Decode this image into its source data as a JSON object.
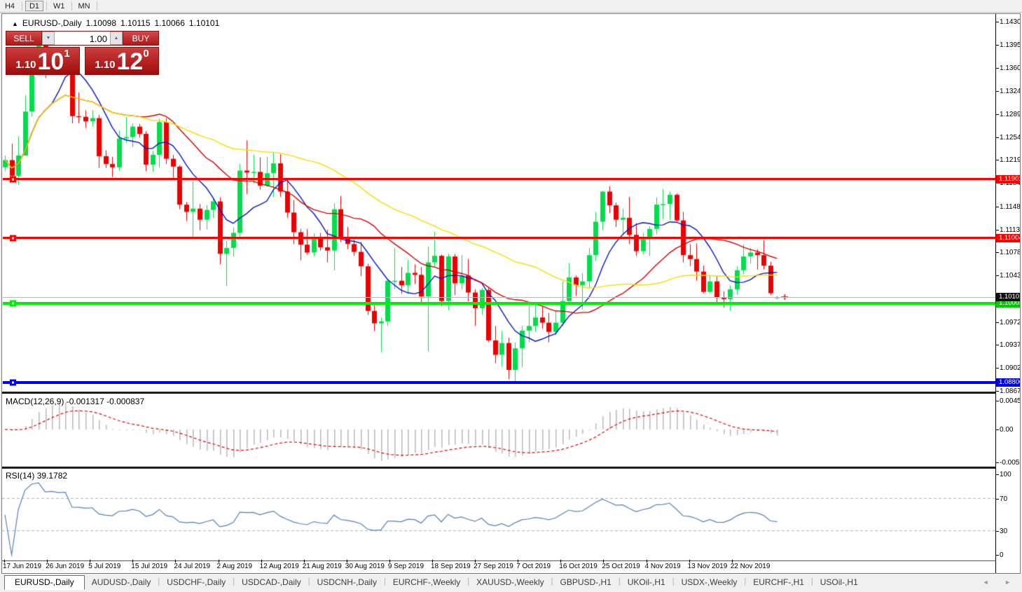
{
  "toolbar": {
    "periods": [
      {
        "label": "H4",
        "active": false
      },
      {
        "label": "D1",
        "active": true
      },
      {
        "label": "W1",
        "active": false
      },
      {
        "label": "MN",
        "active": false
      }
    ]
  },
  "chart_header": {
    "symbol_title": "EURUSD-,Daily",
    "open": "1.10098",
    "high": "1.10115",
    "low": "1.10066",
    "close": "1.10101"
  },
  "trade_panel": {
    "sell_label": "SELL",
    "buy_label": "BUY",
    "volume": "1.00",
    "sell_price": {
      "prefix": "1.10",
      "big": "10",
      "sup": "1"
    },
    "buy_price": {
      "prefix": "1.10",
      "big": "12",
      "sup": "0"
    }
  },
  "icons": {
    "collapse": "▲",
    "spinner_up": "▲",
    "spinner_down": "▼",
    "tab_scroll_left": "◄",
    "tab_scroll_right": "►"
  },
  "chart_data": {
    "type": "candlestick",
    "title": "EURUSD-,Daily",
    "price_axis_labels": [
      "1.14300",
      "1.13950",
      "1.13600",
      "1.13240",
      "1.12890",
      "1.12540",
      "1.12190",
      "1.11840",
      "1.11480",
      "1.11130",
      "1.10780",
      "1.10430",
      "1.09720",
      "1.09370",
      "1.09020",
      "1.08670"
    ],
    "date_labels": [
      "17 Jun 2019",
      "26 Jun 2019",
      "5 Jul 2019",
      "15 Jul 2019",
      "24 Jul 2019",
      "2 Aug 2019",
      "12 Aug 2019",
      "21 Aug 2019",
      "30 Aug 2019",
      "9 Sep 2019",
      "18 Sep 2019",
      "27 Sep 2019",
      "7 Oct 2019",
      "16 Oct 2019",
      "25 Oct 2019",
      "4 Nov 2019",
      "13 Nov 2019",
      "22 Nov 2019"
    ],
    "colors": {
      "up": "#00DE4B",
      "down": "#ED0000",
      "ma_fast": "#0014C8",
      "ma_mid": "#D30000",
      "ma_slow": "#F2DE00",
      "resistance": "#FF0000",
      "support_green": "#00EE00",
      "support_blue": "#0000F0",
      "current_line": "#b8b8b8",
      "current_badge": "#101010",
      "macd_hist": "#bdbdbd",
      "macd_signal": "#E00000",
      "rsi_line": "#4F81BD"
    },
    "overlays": [
      {
        "name": "ma-fast",
        "type": "sma",
        "period": 8,
        "color": "#0014C8"
      },
      {
        "name": "ma-mid",
        "type": "sma",
        "period": 21,
        "color": "#D30000"
      },
      {
        "name": "ma-slow",
        "type": "sma",
        "period": 45,
        "color": "#F2DE00"
      }
    ],
    "hlines": [
      {
        "name": "resistance-line-1",
        "price": 1.11901,
        "label": "1.11901",
        "color": "#FF0000",
        "thickness": 3
      },
      {
        "name": "resistance-line-2",
        "price": 1.11004,
        "label": "1.11004",
        "color": "#FF0000",
        "thickness": 3
      },
      {
        "name": "support-line-green",
        "price": 1.10003,
        "label": "1.10003",
        "color": "#00EE00",
        "thickness": 4
      },
      {
        "name": "support-line-blue",
        "price": 1.088,
        "label": "1.08800",
        "color": "#0000F0",
        "thickness": 4
      }
    ],
    "current_price": {
      "value": 1.10101,
      "label": "1.10101"
    },
    "candles": [
      [
        1.1208,
        1.1226,
        1.1202,
        1.1219
      ],
      [
        1.1219,
        1.1244,
        1.1187,
        1.1195
      ],
      [
        1.1195,
        1.1255,
        1.1181,
        1.1226
      ],
      [
        1.1226,
        1.1317,
        1.1226,
        1.1293
      ],
      [
        1.1293,
        1.1378,
        1.1285,
        1.1368
      ],
      [
        1.1368,
        1.1404,
        1.1358,
        1.1399
      ],
      [
        1.1399,
        1.1412,
        1.1344,
        1.1366
      ],
      [
        1.1366,
        1.1391,
        1.1348,
        1.1373
      ],
      [
        1.1373,
        1.1388,
        1.1351,
        1.1368
      ],
      [
        1.1368,
        1.1391,
        1.1358,
        1.1373
      ],
      [
        1.1373,
        1.1376,
        1.1275,
        1.1286
      ],
      [
        1.1286,
        1.1322,
        1.1275,
        1.1285
      ],
      [
        1.1285,
        1.1295,
        1.1268,
        1.1278
      ],
      [
        1.1278,
        1.1295,
        1.127,
        1.1283
      ],
      [
        1.1283,
        1.1288,
        1.1207,
        1.1225
      ],
      [
        1.1225,
        1.1234,
        1.1207,
        1.1213
      ],
      [
        1.1213,
        1.1224,
        1.1193,
        1.1208
      ],
      [
        1.1208,
        1.1264,
        1.1203,
        1.1252
      ],
      [
        1.1252,
        1.1285,
        1.1245,
        1.1254
      ],
      [
        1.1254,
        1.1275,
        1.1239,
        1.127
      ],
      [
        1.127,
        1.1274,
        1.1253,
        1.1259
      ],
      [
        1.1259,
        1.1263,
        1.1202,
        1.1212
      ],
      [
        1.1212,
        1.1233,
        1.1201,
        1.1227
      ],
      [
        1.1227,
        1.1282,
        1.1208,
        1.1277
      ],
      [
        1.1277,
        1.1283,
        1.1213,
        1.1221
      ],
      [
        1.1221,
        1.1227,
        1.1192,
        1.1209
      ],
      [
        1.1209,
        1.1211,
        1.1144,
        1.1151
      ],
      [
        1.1151,
        1.1155,
        1.1126,
        1.114
      ],
      [
        1.114,
        1.1187,
        1.1101,
        1.1145
      ],
      [
        1.1145,
        1.1152,
        1.1112,
        1.1128
      ],
      [
        1.1128,
        1.115,
        1.1113,
        1.1143
      ],
      [
        1.1143,
        1.1162,
        1.1131,
        1.1156
      ],
      [
        1.1156,
        1.1162,
        1.106,
        1.1076
      ],
      [
        1.1076,
        1.1096,
        1.1027,
        1.1085
      ],
      [
        1.1085,
        1.1116,
        1.1072,
        1.1108
      ],
      [
        1.1108,
        1.1213,
        1.1101,
        1.1203
      ],
      [
        1.1203,
        1.1249,
        1.1167,
        1.12
      ],
      [
        1.12,
        1.1227,
        1.1183,
        1.1201
      ],
      [
        1.1201,
        1.1223,
        1.1174,
        1.118
      ],
      [
        1.118,
        1.1224,
        1.1178,
        1.1199
      ],
      [
        1.1199,
        1.123,
        1.1162,
        1.1214
      ],
      [
        1.1214,
        1.1228,
        1.1163,
        1.1171
      ],
      [
        1.1171,
        1.1191,
        1.1131,
        1.1139
      ],
      [
        1.1139,
        1.1158,
        1.1091,
        1.1109
      ],
      [
        1.1109,
        1.1114,
        1.1066,
        1.109
      ],
      [
        1.109,
        1.1114,
        1.1075,
        1.1078
      ],
      [
        1.1078,
        1.1107,
        1.1072,
        1.11
      ],
      [
        1.11,
        1.1108,
        1.1081,
        1.1086
      ],
      [
        1.1086,
        1.1113,
        1.1063,
        1.1081
      ],
      [
        1.1081,
        1.1153,
        1.1051,
        1.1144
      ],
      [
        1.1144,
        1.1164,
        1.1094,
        1.1101
      ],
      [
        1.1101,
        1.1117,
        1.1083,
        1.1091
      ],
      [
        1.1091,
        1.1098,
        1.1073,
        1.1079
      ],
      [
        1.1079,
        1.1094,
        1.1042,
        1.1057
      ],
      [
        1.1057,
        1.1061,
        1.0983,
        1.0989
      ],
      [
        1.0989,
        1.0998,
        1.0958,
        1.097
      ],
      [
        1.097,
        1.0979,
        1.0926,
        1.0973
      ],
      [
        1.0973,
        1.1038,
        1.0966,
        1.1035
      ],
      [
        1.1035,
        1.1085,
        1.1022,
        1.1035
      ],
      [
        1.1035,
        1.1056,
        1.1015,
        1.1028
      ],
      [
        1.1028,
        1.1067,
        1.1015,
        1.1047
      ],
      [
        1.1047,
        1.106,
        1.103,
        1.1044
      ],
      [
        1.1044,
        1.1056,
        1.0999,
        1.1011
      ],
      [
        1.1011,
        1.1087,
        1.0927,
        1.1063
      ],
      [
        1.1063,
        1.111,
        1.1055,
        1.1073
      ],
      [
        1.1073,
        1.1075,
        1.0996,
        1.1004
      ],
      [
        1.1004,
        1.1076,
        1.099,
        1.1072
      ],
      [
        1.1072,
        1.1076,
        1.1013,
        1.1031
      ],
      [
        1.1031,
        1.1074,
        1.1022,
        1.1043
      ],
      [
        1.1043,
        1.1068,
        1.1004,
        1.1017
      ],
      [
        1.1017,
        1.1022,
        1.0966,
        1.0993
      ],
      [
        1.0993,
        1.1024,
        1.0983,
        1.1021
      ],
      [
        1.1021,
        1.1024,
        1.0941,
        1.0944
      ],
      [
        1.0944,
        1.0966,
        1.0909,
        1.0922
      ],
      [
        1.0922,
        1.0958,
        1.0904,
        1.094
      ],
      [
        1.094,
        1.0948,
        1.0885,
        1.0899
      ],
      [
        1.0899,
        1.0941,
        1.0879,
        1.0932
      ],
      [
        1.0932,
        1.0966,
        1.0903,
        1.0959
      ],
      [
        1.0959,
        1.0999,
        1.0941,
        1.0966
      ],
      [
        1.0966,
        1.0999,
        1.0957,
        1.0979
      ],
      [
        1.0979,
        1.0996,
        1.0962,
        1.0971
      ],
      [
        1.0971,
        1.0986,
        1.0941,
        1.0957
      ],
      [
        1.0957,
        1.0989,
        1.0952,
        1.0971
      ],
      [
        1.0971,
        1.1034,
        1.0966,
        1.1004
      ],
      [
        1.1004,
        1.1062,
        1.1002,
        1.104
      ],
      [
        1.104,
        1.1043,
        1.1012,
        1.1028
      ],
      [
        1.1028,
        1.1047,
        1.0991,
        1.1034
      ],
      [
        1.1034,
        1.1085,
        1.1024,
        1.1074
      ],
      [
        1.1074,
        1.114,
        1.1065,
        1.1125
      ],
      [
        1.1125,
        1.1172,
        1.1112,
        1.1171
      ],
      [
        1.1171,
        1.1179,
        1.1138,
        1.115
      ],
      [
        1.115,
        1.1154,
        1.1117,
        1.1128
      ],
      [
        1.1128,
        1.1145,
        1.1106,
        1.1131
      ],
      [
        1.1131,
        1.1163,
        1.1091,
        1.1105
      ],
      [
        1.1105,
        1.1123,
        1.1073,
        1.108
      ],
      [
        1.108,
        1.1108,
        1.1075,
        1.1099
      ],
      [
        1.1099,
        1.1118,
        1.1073,
        1.1114
      ],
      [
        1.1114,
        1.1162,
        1.1106,
        1.1151
      ],
      [
        1.1151,
        1.1175,
        1.1129,
        1.1152
      ],
      [
        1.1152,
        1.1171,
        1.1128,
        1.1166
      ],
      [
        1.1166,
        1.1168,
        1.1125,
        1.1127
      ],
      [
        1.1127,
        1.114,
        1.1063,
        1.1074
      ],
      [
        1.1074,
        1.1091,
        1.1057,
        1.1068
      ],
      [
        1.1068,
        1.1092,
        1.1035,
        1.1049
      ],
      [
        1.1049,
        1.1058,
        1.1016,
        1.1018
      ],
      [
        1.1018,
        1.1043,
        1.1016,
        1.1034
      ],
      [
        1.1034,
        1.1042,
        1.1002,
        1.1009
      ],
      [
        1.1009,
        1.1019,
        1.0994,
        1.1007
      ],
      [
        1.1007,
        1.1028,
        1.0989,
        1.1022
      ],
      [
        1.1022,
        1.1057,
        1.1014,
        1.1051
      ],
      [
        1.1051,
        1.109,
        1.1045,
        1.1072
      ],
      [
        1.1072,
        1.1085,
        1.1061,
        1.1078
      ],
      [
        1.1078,
        1.1083,
        1.1052,
        1.1074
      ],
      [
        1.1074,
        1.1097,
        1.1052,
        1.1058
      ],
      [
        1.1058,
        1.1064,
        1.1013,
        1.1016
      ],
      [
        1.10098,
        1.10115,
        1.10066,
        1.10101
      ]
    ],
    "indicators": {
      "macd": {
        "label": "MACD(12,26,9)",
        "values_text": "-0.001317 -0.000837",
        "params": [
          12,
          26,
          9
        ],
        "axis_labels": [
          "0.004536",
          "0.00",
          "-0.005206"
        ]
      },
      "rsi": {
        "label": "RSI(14)",
        "values_text": "39.1782",
        "period": 14,
        "axis_labels": [
          "100",
          "70",
          "30",
          "0"
        ],
        "levels": [
          70,
          30
        ]
      }
    }
  },
  "tab_bar": {
    "tabs": [
      {
        "label": "EURUSD-,Daily",
        "active": true
      },
      {
        "label": "AUDUSD-,Daily",
        "active": false
      },
      {
        "label": "USDCHF-,Daily",
        "active": false
      },
      {
        "label": "USDCAD-,Daily",
        "active": false
      },
      {
        "label": "USDCNH-,Daily",
        "active": false
      },
      {
        "label": "EURCHF-,Weekly",
        "active": false
      },
      {
        "label": "XAUUSD-,Weekly",
        "active": false
      },
      {
        "label": "GBPUSD-,H1",
        "active": false
      },
      {
        "label": "UKOil-,H1",
        "active": false
      },
      {
        "label": "USDX-,Weekly",
        "active": false
      },
      {
        "label": "EURCHF-,H1",
        "active": false
      },
      {
        "label": "USOil-,H1",
        "active": false
      }
    ]
  }
}
